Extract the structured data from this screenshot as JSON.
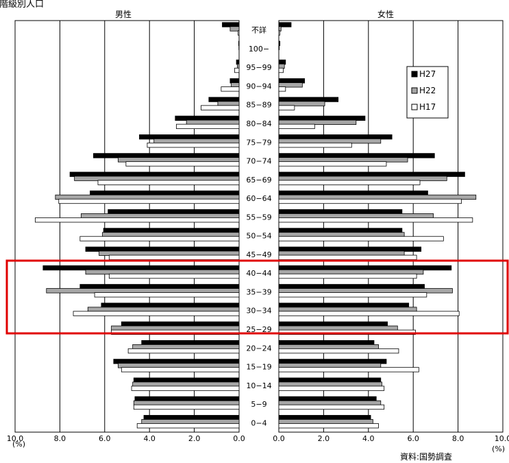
{
  "page_title": "歳階級別人口",
  "source_note": "資料:国勢調査",
  "colors": {
    "H27": "#000000",
    "H22": "#a6a6a6",
    "H17": "#ffffff",
    "highlight": "#e00000",
    "grid": "#000000"
  },
  "chart_data": {
    "type": "bar",
    "subtype": "population-pyramid",
    "title": "",
    "panels": [
      {
        "key": "male",
        "label": "男性"
      },
      {
        "key": "female",
        "label": "女性"
      }
    ],
    "categories": [
      "不詳",
      "100−",
      "95−99",
      "90−94",
      "85−89",
      "80−84",
      "75−79",
      "70−74",
      "65−69",
      "60−64",
      "55−59",
      "50−54",
      "45−49",
      "40−44",
      "35−39",
      "30−34",
      "25−29",
      "20−24",
      "15−19",
      "10−14",
      "5−9",
      "0−4"
    ],
    "xlim": [
      0,
      10.0
    ],
    "x_ticks": [
      "10.0",
      "8.0",
      "6.0",
      "4.0",
      "2.0",
      "0.0"
    ],
    "x_unit": "(%)",
    "grid": true,
    "legend_position": "top-right (female panel)",
    "highlight_categories": [
      "40−44",
      "35−39",
      "30−34",
      "25−29"
    ],
    "series": [
      {
        "name": "H27",
        "male": [
          0.75,
          0.02,
          0.12,
          0.4,
          1.35,
          2.85,
          4.45,
          6.5,
          7.55,
          6.65,
          5.85,
          6.05,
          6.85,
          8.75,
          7.1,
          6.15,
          5.25,
          4.35,
          5.6,
          4.7,
          4.65,
          4.25
        ],
        "female": [
          0.55,
          0.05,
          0.3,
          1.15,
          2.65,
          3.85,
          5.05,
          6.95,
          8.3,
          6.65,
          5.5,
          5.5,
          6.35,
          7.7,
          6.5,
          5.8,
          4.85,
          4.25,
          4.8,
          4.55,
          4.35,
          4.1
        ]
      },
      {
        "name": "H22",
        "male": [
          0.4,
          0.01,
          0.08,
          0.35,
          0.95,
          2.35,
          3.8,
          5.4,
          7.35,
          8.2,
          7.05,
          6.1,
          6.25,
          6.85,
          8.6,
          6.75,
          5.7,
          4.75,
          5.4,
          4.75,
          4.7,
          4.35
        ],
        "female": [
          0.1,
          0.02,
          0.25,
          1.05,
          2.05,
          3.45,
          4.55,
          5.75,
          7.5,
          8.8,
          6.9,
          5.6,
          5.6,
          6.45,
          7.75,
          6.15,
          5.3,
          4.45,
          4.55,
          4.6,
          4.55,
          4.2
        ]
      },
      {
        "name": "H17",
        "male": [
          0.05,
          0.0,
          0.2,
          0.8,
          1.7,
          2.8,
          4.1,
          5.05,
          6.3,
          8.05,
          9.1,
          7.1,
          5.8,
          5.8,
          6.45,
          7.4,
          5.7,
          4.95,
          5.25,
          4.8,
          4.7,
          4.55
        ],
        "female": [
          0.05,
          0.0,
          0.2,
          0.3,
          0.7,
          1.6,
          3.25,
          4.8,
          6.3,
          8.15,
          8.65,
          7.35,
          6.15,
          6.15,
          6.6,
          8.05,
          6.1,
          5.35,
          6.25,
          4.7,
          4.7,
          4.45
        ]
      }
    ]
  }
}
